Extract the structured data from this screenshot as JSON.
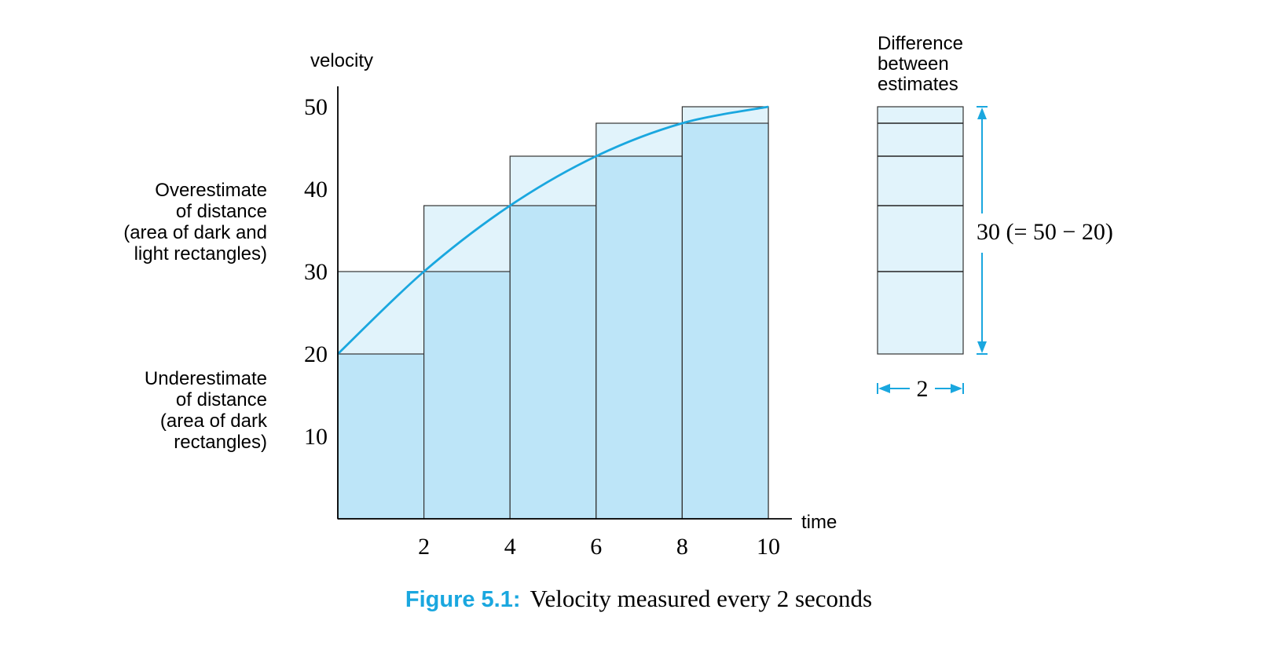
{
  "chart_data": {
    "type": "bar",
    "ylabel": "velocity",
    "xlabel": "time",
    "x_ticks": [
      2,
      4,
      6,
      8,
      10
    ],
    "y_ticks": [
      10,
      20,
      30,
      40,
      50
    ],
    "xlim": [
      0,
      10
    ],
    "ylim": [
      0,
      52
    ],
    "time_points": [
      0,
      2,
      4,
      6,
      8,
      10
    ],
    "velocity_values": [
      20,
      30,
      38,
      44,
      48,
      50
    ],
    "interval_width": 2,
    "series": [
      {
        "role": "underestimate",
        "values": [
          20,
          30,
          38,
          44,
          48
        ]
      },
      {
        "role": "overestimate",
        "values": [
          30,
          38,
          44,
          48,
          50
        ]
      }
    ],
    "annotations": {
      "overestimate": [
        "Overestimate",
        "of distance",
        "(area of dark and",
        "light rectangles)"
      ],
      "underestimate": [
        "Underestimate",
        "of distance",
        "(area of dark",
        "rectangles)"
      ],
      "difference_title": [
        "Difference",
        "between",
        "estimates"
      ],
      "difference_value": "30 (= 50 − 20)",
      "width_label": "2"
    },
    "caption": {
      "label": "Figure 5.1:",
      "text": "Velocity measured every 2 seconds"
    },
    "colors": {
      "dark": "#bde5f8",
      "light": "#e1f3fb",
      "curve": "#1aa7df",
      "caption_label": "#1aa7df",
      "axis": "#000000"
    }
  }
}
